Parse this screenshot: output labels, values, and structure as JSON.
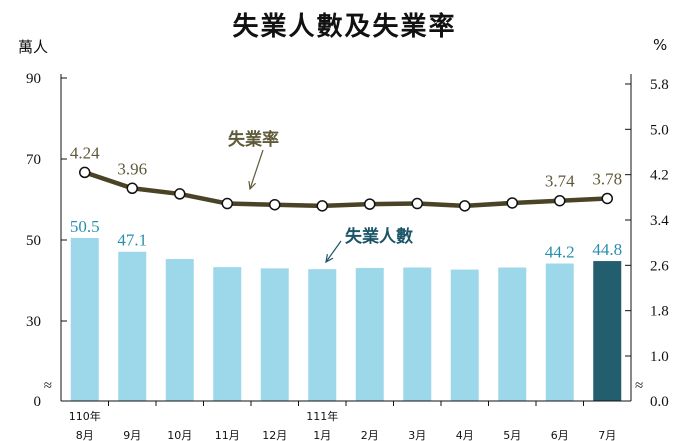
{
  "title": "失業人數及失業率",
  "left_unit": "萬人",
  "right_unit": "%",
  "annotation_rate": "失業率",
  "annotation_count": "失業人數",
  "colors": {
    "bar": "#9dd8ea",
    "bar_highlight": "#225e6e",
    "line": "#4a4326",
    "rate_label": "#5f5a3a",
    "count_label": "#2a8fad",
    "count_annotation": "#1c5568"
  },
  "chart_data": {
    "type": "bar+line",
    "title": "失業人數及失業率",
    "categories": [
      "8月",
      "9月",
      "10月",
      "11月",
      "12月",
      "1月",
      "2月",
      "3月",
      "4月",
      "5月",
      "6月",
      "7月"
    ],
    "year_labels": [
      {
        "index": 0,
        "text": "110年"
      },
      {
        "index": 5,
        "text": "111年"
      }
    ],
    "series": [
      {
        "name": "失業人數",
        "type": "bar",
        "axis": "left",
        "values": [
          50.5,
          47.1,
          45.3,
          43.3,
          43.0,
          42.8,
          43.1,
          43.2,
          42.7,
          43.2,
          44.2,
          44.8
        ],
        "labels": [
          "50.5",
          "47.1",
          "",
          "",
          "",
          "",
          "",
          "",
          "",
          "",
          "44.2",
          "44.8"
        ]
      },
      {
        "name": "失業率",
        "type": "line",
        "axis": "right",
        "values": [
          4.24,
          3.96,
          3.86,
          3.69,
          3.67,
          3.65,
          3.68,
          3.69,
          3.65,
          3.7,
          3.74,
          3.78
        ],
        "labels": [
          "4.24",
          "3.96",
          "",
          "",
          "",
          "",
          "",
          "",
          "",
          "",
          "3.74",
          "3.78"
        ]
      }
    ],
    "left_axis": {
      "ticks": [
        "0",
        "30",
        "50",
        "70",
        "90"
      ],
      "tick_values": [
        0,
        30,
        50,
        70,
        90
      ],
      "broken_below": 30
    },
    "right_axis": {
      "ticks": [
        "0.0",
        "1.0",
        "1.8",
        "2.6",
        "3.4",
        "4.2",
        "5.0",
        "5.8"
      ],
      "tick_values": [
        0.0,
        1.0,
        1.8,
        2.6,
        3.4,
        4.2,
        5.0,
        5.8
      ],
      "broken_below": 1.0
    },
    "axis_break_symbol": "≈",
    "grid": false,
    "highlight_index": 11
  }
}
